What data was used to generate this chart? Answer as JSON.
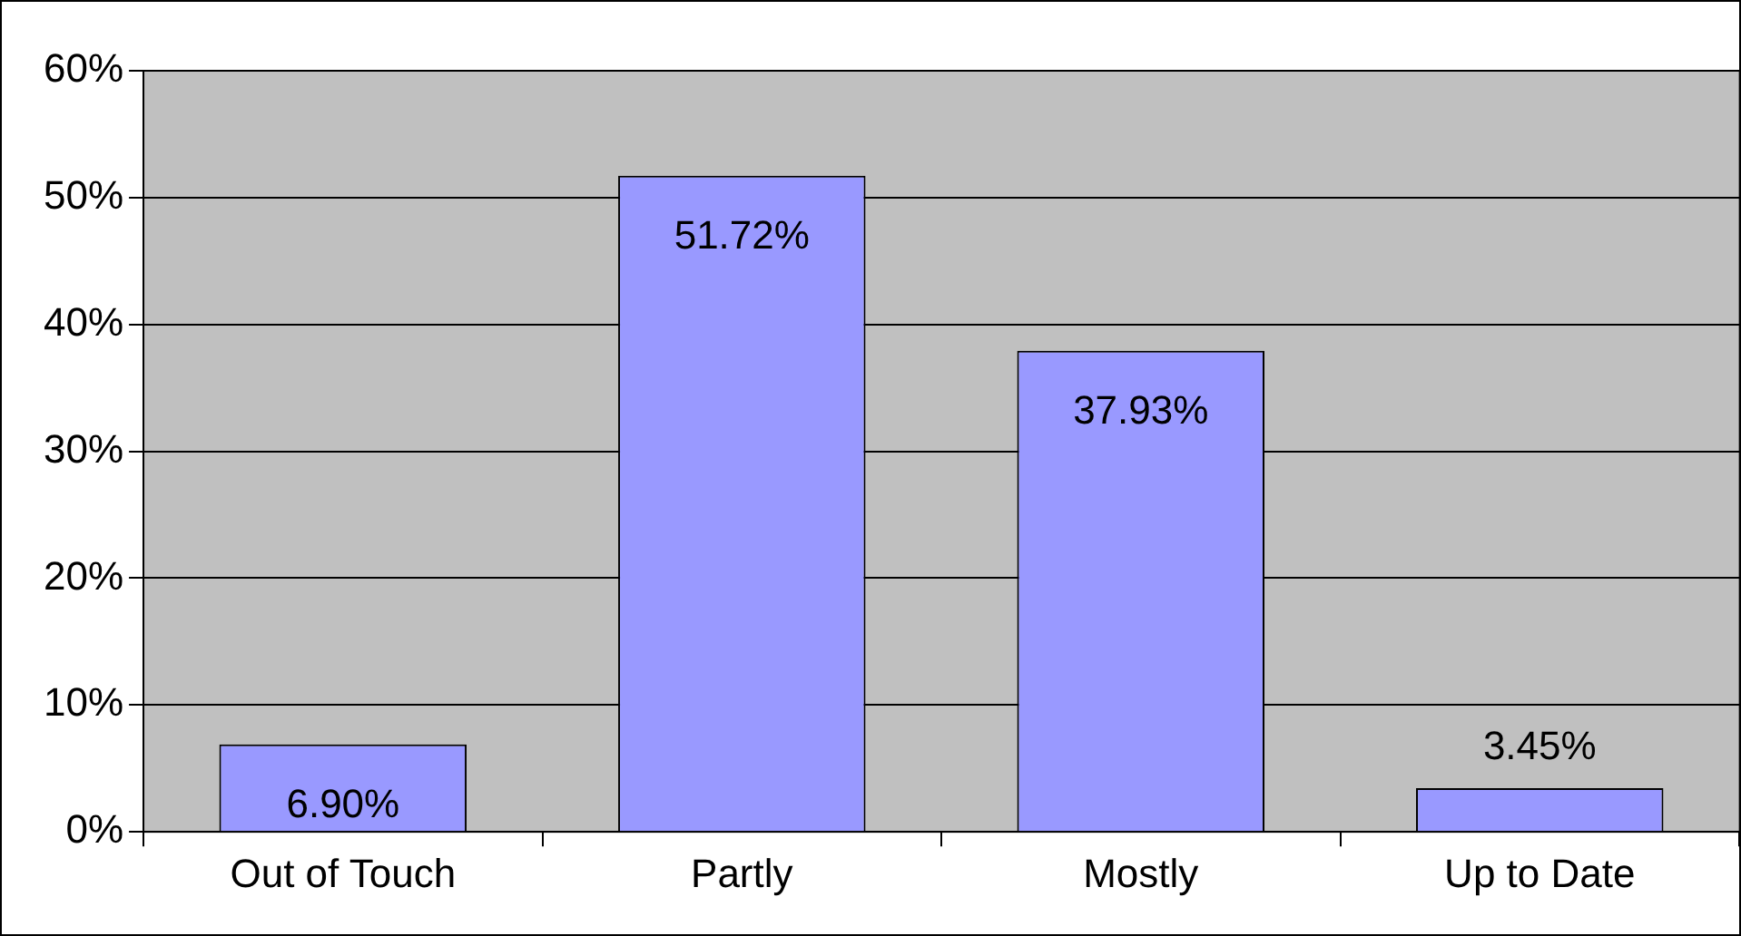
{
  "chart_data": {
    "type": "bar",
    "categories": [
      "Out of Touch",
      "Partly",
      "Mostly",
      "Up to Date"
    ],
    "values": [
      6.9,
      51.72,
      37.93,
      3.45
    ],
    "color": "#9999ff",
    "value_labels": [
      "6.90%",
      "51.72%",
      "37.93%",
      "3.45%"
    ],
    "ylim": [
      0,
      60
    ],
    "yticks": [
      {
        "value": 0,
        "label": "0%"
      },
      {
        "value": 10,
        "label": "10%"
      },
      {
        "value": 20,
        "label": "20%"
      },
      {
        "value": 30,
        "label": "30%"
      },
      {
        "value": 40,
        "label": "40%"
      },
      {
        "value": 50,
        "label": "50%"
      },
      {
        "value": 60,
        "label": "60%"
      }
    ],
    "grid": "y",
    "legend": false
  }
}
